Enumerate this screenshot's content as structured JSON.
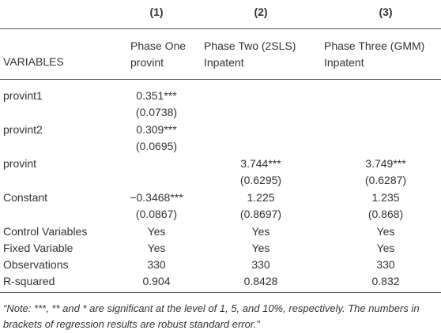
{
  "header": {
    "columns": [
      "(1)",
      "(2)",
      "(3)"
    ],
    "variables": "VARIABLES",
    "subheads": [
      [
        "Phase One",
        "provint"
      ],
      [
        "Phase Two (2SLS)",
        "Inpatent"
      ],
      [
        "Phase Three (GMM)",
        "Inpatent"
      ]
    ]
  },
  "rows": [
    {
      "label": "provint1",
      "values": [
        "0.351***",
        null,
        null
      ],
      "se": [
        "(0.0738)",
        null,
        null
      ]
    },
    {
      "label": "provint2",
      "values": [
        "0.309***",
        null,
        null
      ],
      "se": [
        "(0.0695)",
        null,
        null
      ]
    },
    {
      "label": "provint",
      "values": [
        null,
        "3.744***",
        "3.749***"
      ],
      "se": [
        null,
        "(0.6295)",
        "(0.6287)"
      ]
    },
    {
      "label": "Constant",
      "values": [
        "−0.3468***",
        "1.225",
        "1.235"
      ],
      "se": [
        "(0.0867)",
        "(0.8697)",
        "(0.868)"
      ]
    },
    {
      "label": "Control Variables",
      "values": [
        "Yes",
        "Yes",
        "Yes"
      ]
    },
    {
      "label": "Fixed Variable",
      "values": [
        "Yes",
        "Yes",
        "Yes"
      ]
    },
    {
      "label": "Observations",
      "values": [
        "330",
        "330",
        "330"
      ]
    },
    {
      "label": "R-squared",
      "values": [
        "0.904",
        "0.8428",
        "0.832"
      ]
    }
  ],
  "note": "“Note: ***, ** and * are significant at the level of 1, 5, and 10%, respectively. The numbers in brackets of regression results are robust standard error.”"
}
